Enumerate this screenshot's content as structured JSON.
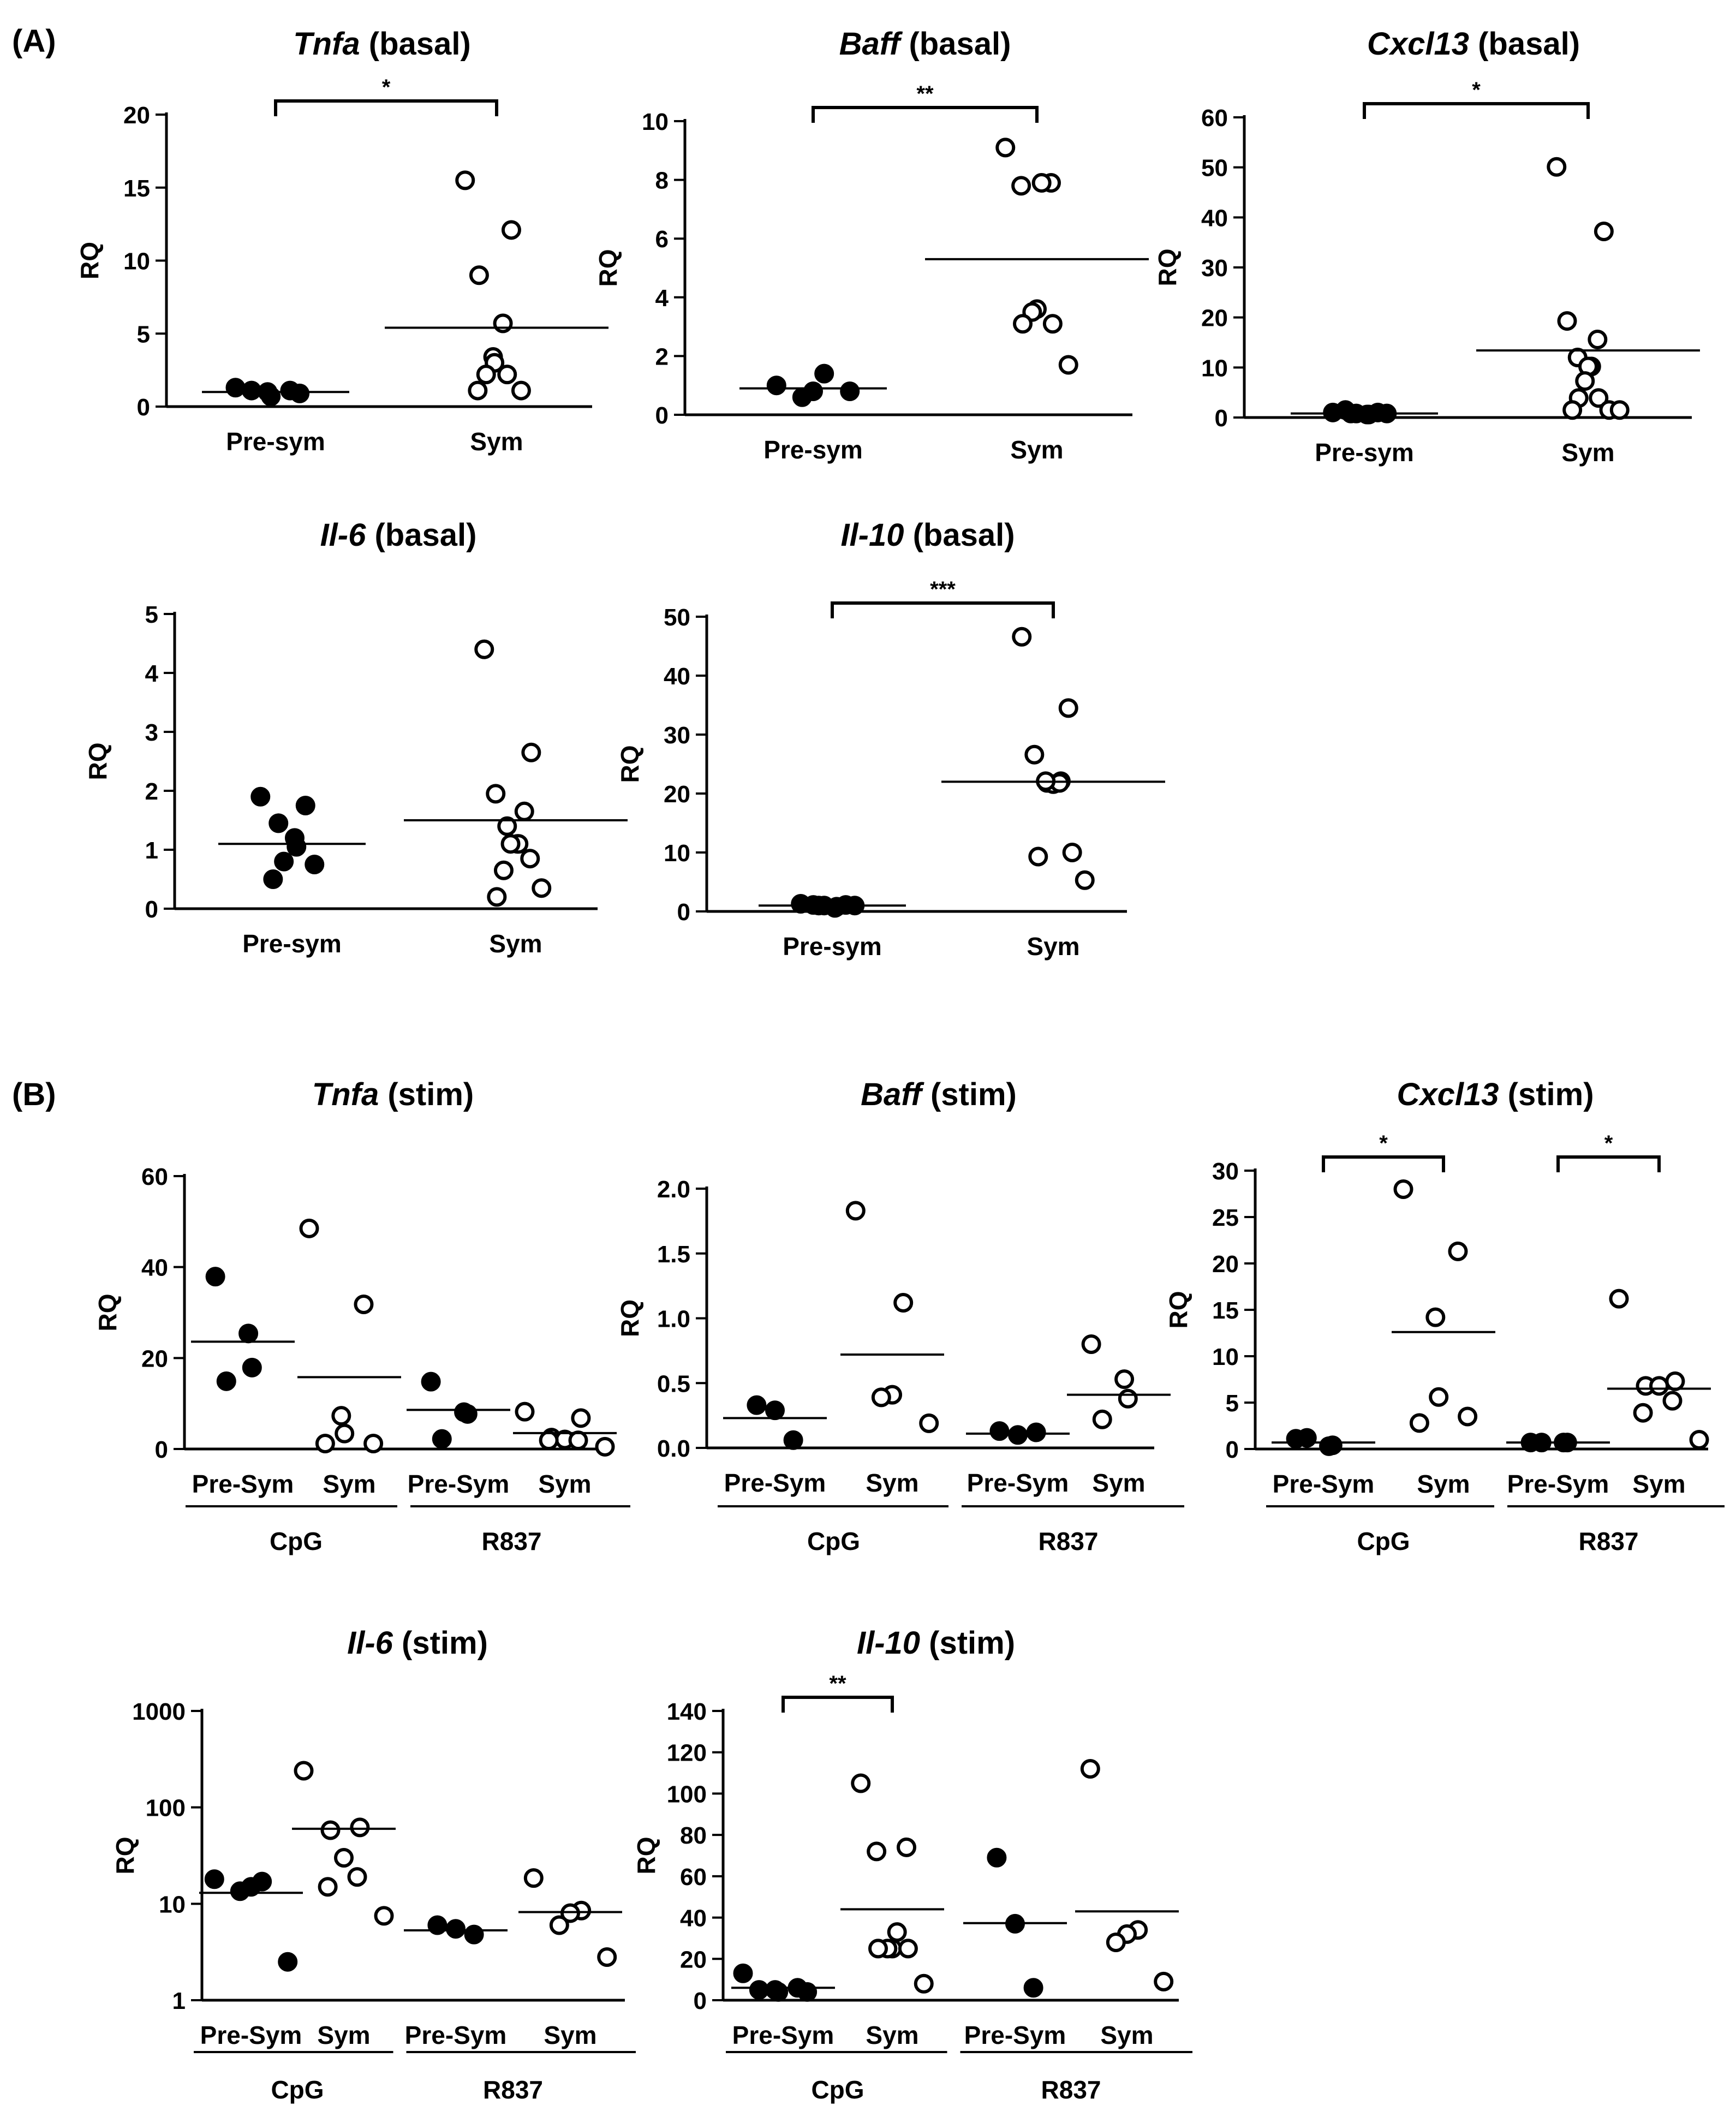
{
  "panels": [
    {
      "label": "(A)"
    },
    {
      "label": "(B)"
    }
  ],
  "chart_data": [
    {
      "type": "scatter",
      "title": "Tnfa",
      "title_suffix": " (basal)",
      "ylabel": "RQ",
      "yscale": "linear",
      "ylim": [
        0,
        20
      ],
      "yticks": [
        0,
        5,
        10,
        15,
        20
      ],
      "groups": [
        {
          "label": "Pre-sym",
          "filled": true,
          "points": [
            1.3,
            1.1,
            1.0,
            0.7,
            0.9,
            1.1
          ],
          "mean": 1.0
        },
        {
          "label": "Sym",
          "filled": false,
          "points": [
            15.5,
            12.1,
            9.0,
            5.7,
            3.4,
            3.0,
            2.2,
            2.2,
            1.1,
            1.1
          ],
          "mean": 5.4
        }
      ],
      "significance": [
        {
          "from": 0,
          "to": 1,
          "label": "*"
        }
      ]
    },
    {
      "type": "scatter",
      "title": "Baff",
      "title_suffix": " (basal)",
      "ylabel": "RQ",
      "yscale": "linear",
      "ylim": [
        0,
        10
      ],
      "yticks": [
        0,
        2,
        4,
        6,
        8,
        10
      ],
      "groups": [
        {
          "label": "Pre-sym",
          "filled": true,
          "points": [
            1.0,
            1.4,
            0.8,
            0.6,
            0.8
          ],
          "mean": 0.9
        },
        {
          "label": "Sym",
          "filled": false,
          "points": [
            9.1,
            7.9,
            7.8,
            7.9,
            3.6,
            3.5,
            3.1,
            3.1,
            1.7
          ],
          "mean": 5.3
        }
      ],
      "significance": [
        {
          "from": 0,
          "to": 1,
          "label": "**"
        }
      ]
    },
    {
      "type": "scatter",
      "title": "Cxcl13",
      "title_suffix": " (basal)",
      "ylabel": "RQ",
      "yscale": "linear",
      "ylim": [
        0,
        60
      ],
      "yticks": [
        0,
        10,
        20,
        30,
        40,
        50,
        60
      ],
      "groups": [
        {
          "label": "Pre-sym",
          "filled": true,
          "points": [
            1.0,
            1.0,
            0.8,
            0.6,
            0.6,
            0.8,
            0.8,
            1.5
          ],
          "mean": 0.8
        },
        {
          "label": "Sym",
          "filled": false,
          "points": [
            50.1,
            37.2,
            19.3,
            15.6,
            12.0,
            10.2,
            10.2,
            7.3,
            3.9,
            3.9,
            1.5,
            1.5,
            1.5
          ],
          "mean": 13.4
        }
      ],
      "significance": [
        {
          "from": 0,
          "to": 1,
          "label": "*"
        }
      ]
    },
    {
      "type": "scatter",
      "title": "Il-6",
      "title_suffix": " (basal)",
      "ylabel": "RQ",
      "yscale": "linear",
      "ylim": [
        0,
        5
      ],
      "yticks": [
        0,
        1,
        2,
        3,
        4,
        5
      ],
      "groups": [
        {
          "label": "Pre-sym",
          "filled": true,
          "points": [
            1.9,
            1.75,
            1.45,
            1.2,
            1.05,
            0.8,
            0.75,
            0.5
          ],
          "mean": 1.1
        },
        {
          "label": "Sym",
          "filled": false,
          "points": [
            4.4,
            2.65,
            1.95,
            1.65,
            1.4,
            1.1,
            1.1,
            1.1,
            0.85,
            0.65,
            0.35,
            0.2
          ],
          "mean": 1.5
        }
      ],
      "significance": []
    },
    {
      "type": "scatter",
      "title": "Il-10",
      "title_suffix": " (basal)",
      "ylabel": "RQ",
      "yscale": "linear",
      "ylim": [
        0,
        50
      ],
      "yticks": [
        0,
        10,
        20,
        30,
        40,
        50
      ],
      "groups": [
        {
          "label": "Pre-sym",
          "filled": true,
          "points": [
            1.3,
            1.1,
            1.0,
            0.6,
            0.8,
            1.0,
            1.0,
            1.1
          ],
          "mean": 1.0
        },
        {
          "label": "Sym",
          "filled": false,
          "points": [
            46.6,
            34.5,
            26.6,
            22.1,
            21.8,
            21.6,
            21.8,
            22.1,
            10.0,
            9.3,
            5.3
          ],
          "mean": 22.0
        }
      ],
      "significance": [
        {
          "from": 0,
          "to": 1,
          "label": "***"
        }
      ]
    },
    {
      "type": "scatter",
      "title": "Tnfa",
      "title_suffix": " (stim)",
      "ylabel": "RQ",
      "yscale": "linear",
      "ylim": [
        0,
        60
      ],
      "yticks": [
        0,
        20,
        40,
        60
      ],
      "stimuli": [
        "CpG",
        "R837"
      ],
      "groups": [
        {
          "label": "Pre-Sym",
          "stimulus": "CpG",
          "filled": true,
          "points": [
            37.9,
            25.4,
            17.9,
            14.9
          ],
          "mean": 23.6
        },
        {
          "label": "Sym",
          "stimulus": "CpG",
          "filled": false,
          "points": [
            48.5,
            31.8,
            7.3,
            3.4,
            1.2,
            1.2
          ],
          "mean": 15.8
        },
        {
          "label": "Pre-Sym",
          "stimulus": "R837",
          "filled": true,
          "points": [
            14.8,
            8.1,
            7.7,
            2.2
          ],
          "mean": 8.6
        },
        {
          "label": "Sym",
          "stimulus": "R837",
          "filled": false,
          "points": [
            8.2,
            6.8,
            2.5,
            2.1,
            1.9,
            1.9,
            0.5
          ],
          "mean": 3.5
        }
      ],
      "significance": []
    },
    {
      "type": "scatter",
      "title": "Baff",
      "title_suffix": " (stim)",
      "ylabel": "RQ",
      "yscale": "linear",
      "ylim": [
        0,
        2.0
      ],
      "yticks": [
        0.0,
        0.5,
        1.0,
        1.5,
        2.0
      ],
      "ytick_labels": [
        "0.0",
        "0.5",
        "1.0",
        "1.5",
        "2.0"
      ],
      "stimuli": [
        "CpG",
        "R837"
      ],
      "groups": [
        {
          "label": "Pre-Sym",
          "stimulus": "CpG",
          "filled": true,
          "points": [
            0.33,
            0.29,
            0.06
          ],
          "mean": 0.23
        },
        {
          "label": "Sym",
          "stimulus": "CpG",
          "filled": false,
          "points": [
            1.83,
            1.12,
            0.41,
            0.39,
            0.19
          ],
          "mean": 0.72
        },
        {
          "label": "Pre-Sym",
          "stimulus": "R837",
          "filled": true,
          "points": [
            0.13,
            0.1,
            0.12
          ],
          "mean": 0.11
        },
        {
          "label": "Sym",
          "stimulus": "R837",
          "filled": false,
          "points": [
            0.8,
            0.53,
            0.38,
            0.22
          ],
          "mean": 0.41
        }
      ],
      "significance": []
    },
    {
      "type": "scatter",
      "title": "Cxcl13",
      "title_suffix": " (stim)",
      "ylabel": "RQ",
      "yscale": "linear",
      "ylim": [
        0,
        30
      ],
      "yticks": [
        0,
        5,
        10,
        15,
        20,
        25,
        30
      ],
      "stimuli": [
        "CpG",
        "R837"
      ],
      "groups": [
        {
          "label": "Pre-Sym",
          "stimulus": "CpG",
          "filled": true,
          "points": [
            1.1,
            0.3,
            0.4,
            1.2
          ],
          "mean": 0.7
        },
        {
          "label": "Sym",
          "stimulus": "CpG",
          "filled": false,
          "points": [
            28.0,
            21.3,
            14.2,
            5.6,
            3.5,
            2.8
          ],
          "mean": 12.6
        },
        {
          "label": "Pre-Sym",
          "stimulus": "R837",
          "filled": true,
          "points": [
            0.7,
            0.7,
            0.7,
            0.7
          ],
          "mean": 0.7
        },
        {
          "label": "Sym",
          "stimulus": "R837",
          "filled": false,
          "points": [
            16.2,
            7.3,
            6.8,
            6.8,
            5.2,
            3.9,
            1.0
          ],
          "mean": 6.5
        }
      ],
      "significance": [
        {
          "from": 0,
          "to": 1,
          "label": "*"
        },
        {
          "from": 2,
          "to": 3,
          "label": "*"
        }
      ]
    },
    {
      "type": "scatter",
      "title": "Il-6",
      "title_suffix": " (stim)",
      "ylabel": "RQ",
      "yscale": "log",
      "ylim": [
        1,
        1000
      ],
      "yticks": [
        1,
        10,
        100,
        1000
      ],
      "stimuli": [
        "CpG",
        "R837"
      ],
      "groups": [
        {
          "label": "Pre-Sym",
          "stimulus": "CpG",
          "filled": true,
          "points": [
            18.0,
            17.0,
            15.0,
            13.5,
            2.5
          ],
          "mean": 13.0
        },
        {
          "label": "Sym",
          "stimulus": "CpG",
          "filled": false,
          "points": [
            240,
            62,
            58,
            30,
            19,
            15,
            7.5
          ],
          "mean": 60
        },
        {
          "label": "Pre-Sym",
          "stimulus": "R837",
          "filled": true,
          "points": [
            6.0,
            5.5,
            4.8
          ],
          "mean": 5.3
        },
        {
          "label": "Sym",
          "stimulus": "R837",
          "filled": false,
          "points": [
            18.5,
            8.5,
            8.0,
            6.0,
            2.8
          ],
          "mean": 8.2
        }
      ],
      "significance": []
    },
    {
      "type": "scatter",
      "title": "Il-10",
      "title_suffix": " (stim)",
      "ylabel": "RQ",
      "yscale": "linear",
      "ylim": [
        0,
        140
      ],
      "yticks": [
        0,
        20,
        40,
        60,
        80,
        100,
        120,
        140
      ],
      "stimuli": [
        "CpG",
        "R837"
      ],
      "groups": [
        {
          "label": "Pre-Sym",
          "stimulus": "CpG",
          "filled": true,
          "points": [
            13.0,
            6.0,
            5.0,
            4.0,
            4.0,
            5.0
          ],
          "mean": 6.0
        },
        {
          "label": "Sym",
          "stimulus": "CpG",
          "filled": false,
          "points": [
            105,
            74,
            72,
            33,
            25,
            25,
            25,
            25,
            8
          ],
          "mean": 44
        },
        {
          "label": "Pre-Sym",
          "stimulus": "R837",
          "filled": true,
          "points": [
            69,
            37,
            6
          ],
          "mean": 37.3
        },
        {
          "label": "Sym",
          "stimulus": "R837",
          "filled": false,
          "points": [
            112,
            34,
            32,
            28,
            9
          ],
          "mean": 43
        }
      ],
      "significance": [
        {
          "from": 0,
          "to": 1,
          "label": "**"
        }
      ]
    }
  ]
}
